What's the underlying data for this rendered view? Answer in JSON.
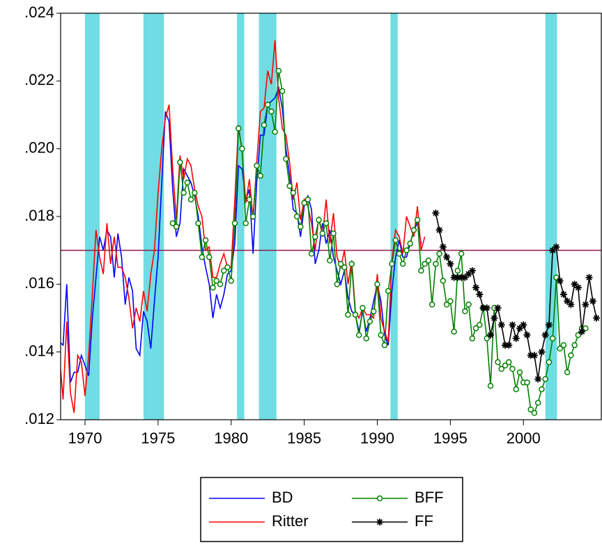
{
  "chart_data": {
    "type": "line",
    "xlim": [
      1968.33,
      2005.33
    ],
    "ylim": [
      0.012,
      0.024
    ],
    "xticks": [
      1970,
      1975,
      1980,
      1985,
      1990,
      1995,
      2000
    ],
    "yticks": [
      {
        "value": 0.012,
        "label": ".012"
      },
      {
        "value": 0.014,
        "label": ".014"
      },
      {
        "value": 0.016,
        "label": ".016"
      },
      {
        "value": 0.018,
        "label": ".018"
      },
      {
        "value": 0.02,
        "label": ".020"
      },
      {
        "value": 0.022,
        "label": ".022"
      },
      {
        "value": 0.024,
        "label": ".024"
      }
    ],
    "shaded_periods": [
      [
        1970.0,
        1971.0
      ],
      [
        1974.0,
        1975.4
      ],
      [
        1980.4,
        1980.9
      ],
      [
        1981.9,
        1983.1
      ],
      [
        1990.9,
        1991.4
      ],
      [
        2001.5,
        2002.3
      ]
    ],
    "shade_color": "#6fdde3",
    "hline": 0.017,
    "hline_color": "#8b1a4a",
    "series": [
      {
        "name": "BD",
        "color": "#0000ff",
        "marker": "none",
        "x": [
          1968.25,
          1968.5,
          1968.75,
          1969,
          1969.25,
          1969.5,
          1969.75,
          1970,
          1970.25,
          1970.5,
          1970.75,
          1971,
          1971.25,
          1971.5,
          1971.75,
          1972,
          1972.25,
          1972.5,
          1972.75,
          1973,
          1973.25,
          1973.5,
          1973.75,
          1974,
          1974.25,
          1974.5,
          1974.75,
          1975,
          1975.25,
          1975.5,
          1975.75,
          1976,
          1976.25,
          1976.5,
          1976.75,
          1977,
          1977.25,
          1977.5,
          1977.75,
          1978,
          1978.25,
          1978.5,
          1978.75,
          1979,
          1979.25,
          1979.5,
          1979.75,
          1980,
          1980.25,
          1980.5,
          1980.75,
          1981,
          1981.25,
          1981.5,
          1981.75,
          1982,
          1982.25,
          1982.5,
          1982.75,
          1983,
          1983.25,
          1983.5,
          1983.75,
          1984,
          1984.25,
          1984.5,
          1984.75,
          1985,
          1985.25,
          1985.5,
          1985.75,
          1986,
          1986.25,
          1986.5,
          1986.75,
          1987,
          1987.25,
          1987.5,
          1987.75,
          1988,
          1988.25,
          1988.5,
          1988.75,
          1989,
          1989.25,
          1989.5,
          1989.75,
          1990,
          1990.25,
          1990.5,
          1990.75,
          1991,
          1991.25,
          1991.5,
          1991.75,
          1992,
          1992.25,
          1992.5,
          1992.75,
          1993
        ],
        "values": [
          0.0143,
          0.0142,
          0.016,
          0.0131,
          0.0134,
          0.0134,
          0.0139,
          0.0136,
          0.0133,
          0.015,
          0.0162,
          0.0174,
          0.017,
          0.0176,
          0.0174,
          0.0162,
          0.0175,
          0.0168,
          0.0154,
          0.0162,
          0.0158,
          0.0141,
          0.0139,
          0.0152,
          0.0149,
          0.0141,
          0.0155,
          0.0168,
          0.019,
          0.0211,
          0.0208,
          0.0188,
          0.0174,
          0.0178,
          0.0194,
          0.0192,
          0.019,
          0.0186,
          0.018,
          0.0171,
          0.0165,
          0.016,
          0.015,
          0.0157,
          0.0153,
          0.0157,
          0.0163,
          0.0164,
          0.0172,
          0.0195,
          0.0194,
          0.0185,
          0.0188,
          0.0169,
          0.019,
          0.0204,
          0.0204,
          0.0213,
          0.0214,
          0.0215,
          0.0218,
          0.0212,
          0.02,
          0.0192,
          0.0182,
          0.0181,
          0.0174,
          0.0183,
          0.0186,
          0.0182,
          0.0166,
          0.017,
          0.0178,
          0.0172,
          0.0176,
          0.0168,
          0.0164,
          0.016,
          0.0164,
          0.0156,
          0.0152,
          0.0151,
          0.0146,
          0.0152,
          0.0146,
          0.015,
          0.0155,
          0.016,
          0.0155,
          0.0145,
          0.0142,
          0.0158,
          0.0168,
          0.0173,
          0.0168,
          0.0168,
          0.0172,
          0.0176,
          0.0178,
          0.0172
        ]
      },
      {
        "name": "Ritter",
        "color": "#ff0000",
        "marker": "none",
        "x": [
          1968.25,
          1968.5,
          1968.75,
          1969,
          1969.25,
          1969.5,
          1969.75,
          1970,
          1970.25,
          1970.5,
          1970.75,
          1971,
          1971.25,
          1971.5,
          1971.75,
          1972,
          1972.25,
          1972.5,
          1972.75,
          1973,
          1973.25,
          1973.5,
          1973.75,
          1974,
          1974.25,
          1974.5,
          1974.75,
          1975,
          1975.25,
          1975.5,
          1975.75,
          1976,
          1976.25,
          1976.5,
          1976.75,
          1977,
          1977.25,
          1977.5,
          1977.75,
          1978,
          1978.25,
          1978.5,
          1978.75,
          1979,
          1979.25,
          1979.5,
          1979.75,
          1980,
          1980.25,
          1980.5,
          1980.75,
          1981,
          1981.25,
          1981.5,
          1981.75,
          1982,
          1982.25,
          1982.5,
          1982.75,
          1983,
          1983.25,
          1983.5,
          1983.75,
          1984,
          1984.25,
          1984.5,
          1984.75,
          1985,
          1985.25,
          1985.5,
          1985.75,
          1986,
          1986.25,
          1986.5,
          1986.75,
          1987,
          1987.25,
          1987.5,
          1987.75,
          1988,
          1988.25,
          1988.5,
          1988.75,
          1989,
          1989.25,
          1989.5,
          1989.75,
          1990,
          1990.25,
          1990.5,
          1990.75,
          1991,
          1991.25,
          1991.5,
          1991.75,
          1992,
          1992.25,
          1992.5,
          1992.75,
          1993,
          1993.25
        ],
        "values": [
          0.0139,
          0.0126,
          0.0149,
          0.0128,
          0.0122,
          0.0139,
          0.0137,
          0.0127,
          0.0139,
          0.0157,
          0.0176,
          0.0168,
          0.0163,
          0.0178,
          0.0166,
          0.0174,
          0.0165,
          0.0165,
          0.0162,
          0.0156,
          0.0147,
          0.0153,
          0.0149,
          0.0158,
          0.0152,
          0.0163,
          0.017,
          0.0187,
          0.02,
          0.0209,
          0.0213,
          0.0194,
          0.0179,
          0.0198,
          0.0191,
          0.0197,
          0.0195,
          0.0188,
          0.0183,
          0.018,
          0.017,
          0.0171,
          0.0162,
          0.0162,
          0.0166,
          0.0169,
          0.0165,
          0.0165,
          0.0185,
          0.0207,
          0.0199,
          0.0184,
          0.0191,
          0.0179,
          0.0196,
          0.0211,
          0.0212,
          0.0223,
          0.0219,
          0.0232,
          0.0215,
          0.0206,
          0.0204,
          0.0196,
          0.0185,
          0.019,
          0.0179,
          0.0185,
          0.0183,
          0.0178,
          0.017,
          0.018,
          0.0174,
          0.0185,
          0.0172,
          0.0181,
          0.0168,
          0.0165,
          0.017,
          0.016,
          0.0167,
          0.0152,
          0.015,
          0.0153,
          0.0151,
          0.0151,
          0.015,
          0.0163,
          0.015,
          0.0146,
          0.0143,
          0.0167,
          0.0176,
          0.0174,
          0.0169,
          0.018,
          0.0177,
          0.0174,
          0.0183,
          0.017,
          0.0174
        ]
      },
      {
        "name": "BFF",
        "color": "#008000",
        "marker": "circle",
        "x": [
          1976,
          1976.25,
          1976.5,
          1976.75,
          1977,
          1977.25,
          1977.5,
          1977.75,
          1978,
          1978.25,
          1978.5,
          1978.75,
          1979,
          1979.25,
          1979.5,
          1979.75,
          1980,
          1980.25,
          1980.5,
          1980.75,
          1981,
          1981.25,
          1981.5,
          1981.75,
          1982,
          1982.25,
          1982.5,
          1982.75,
          1983,
          1983.25,
          1983.5,
          1983.75,
          1984,
          1984.25,
          1984.5,
          1984.75,
          1985,
          1985.25,
          1985.5,
          1985.75,
          1986,
          1986.25,
          1986.5,
          1986.75,
          1987,
          1987.25,
          1987.5,
          1987.75,
          1988,
          1988.25,
          1988.5,
          1988.75,
          1989,
          1989.25,
          1989.5,
          1989.75,
          1990,
          1990.25,
          1990.5,
          1990.75,
          1991,
          1991.25,
          1991.5,
          1991.75,
          1992,
          1992.25,
          1992.5,
          1992.75,
          1993,
          1993.25,
          1993.5,
          1993.75,
          1994,
          1994.25,
          1994.5,
          1994.75,
          1995,
          1995.25,
          1995.5,
          1995.75,
          1996,
          1996.25,
          1996.5,
          1996.75,
          1997,
          1997.25,
          1997.5,
          1997.75,
          1998,
          1998.25,
          1998.5,
          1998.75,
          1999,
          1999.25,
          1999.5,
          1999.75,
          2000,
          2000.25,
          2000.5,
          2000.75,
          2001,
          2001.25,
          2001.5,
          2001.75,
          2002,
          2002.25,
          2002.5,
          2002.75,
          2003,
          2003.25,
          2003.5,
          2003.75,
          2004,
          2004.25
        ],
        "values": [
          0.0178,
          0.0177,
          0.0196,
          0.0187,
          0.019,
          0.0185,
          0.0187,
          0.0178,
          0.0168,
          0.0173,
          0.0168,
          0.0159,
          0.0161,
          0.016,
          0.0164,
          0.0165,
          0.0161,
          0.0178,
          0.0206,
          0.02,
          0.0178,
          0.0185,
          0.018,
          0.0195,
          0.0192,
          0.0207,
          0.0213,
          0.0211,
          0.0205,
          0.0223,
          0.0217,
          0.0197,
          0.0189,
          0.0187,
          0.018,
          0.0177,
          0.0184,
          0.0185,
          0.0169,
          0.0174,
          0.0179,
          0.0175,
          0.0178,
          0.0167,
          0.0175,
          0.016,
          0.0166,
          0.0165,
          0.0151,
          0.0166,
          0.0151,
          0.0145,
          0.0153,
          0.0144,
          0.0149,
          0.0152,
          0.016,
          0.0145,
          0.0142,
          0.0158,
          0.0166,
          0.0173,
          0.0169,
          0.0166,
          0.017,
          0.0172,
          0.0176,
          0.0179,
          0.0164,
          0.0166,
          0.0167,
          0.0154,
          0.0166,
          0.0169,
          0.0161,
          0.0154,
          0.0155,
          0.0146,
          0.0164,
          0.0169,
          0.0152,
          0.0154,
          0.0144,
          0.0147,
          0.0148,
          0.0153,
          0.0144,
          0.013,
          0.0153,
          0.0137,
          0.0135,
          0.0136,
          0.0137,
          0.0135,
          0.0129,
          0.0134,
          0.0131,
          0.0131,
          0.0123,
          0.0122,
          0.0125,
          0.0129,
          0.0132,
          0.0137,
          0.0144,
          0.0162,
          0.0141,
          0.0142,
          0.0134,
          0.0139,
          0.0142,
          0.0145,
          0.0147,
          0.0147
        ]
      },
      {
        "name": "FF",
        "color": "#000000",
        "marker": "star",
        "x": [
          1994,
          1994.25,
          1994.5,
          1994.75,
          1995,
          1995.25,
          1995.5,
          1995.75,
          1996,
          1996.25,
          1996.5,
          1996.75,
          1997,
          1997.25,
          1997.5,
          1997.75,
          1998,
          1998.25,
          1998.5,
          1998.75,
          1999,
          1999.25,
          1999.5,
          1999.75,
          2000,
          2000.25,
          2000.5,
          2000.75,
          2001,
          2001.25,
          2001.5,
          2001.75,
          2002,
          2002.25,
          2002.5,
          2002.75,
          2003,
          2003.25,
          2003.5,
          2003.75,
          2004,
          2004.25,
          2004.5,
          2004.75,
          2005
        ],
        "values": [
          0.0181,
          0.0176,
          0.0171,
          0.0168,
          0.0166,
          0.0162,
          0.0162,
          0.0162,
          0.0162,
          0.0163,
          0.0164,
          0.0159,
          0.0157,
          0.0153,
          0.0153,
          0.0145,
          0.015,
          0.0153,
          0.0148,
          0.0142,
          0.0142,
          0.0148,
          0.0144,
          0.0147,
          0.0148,
          0.0145,
          0.0139,
          0.0139,
          0.0132,
          0.014,
          0.0145,
          0.0148,
          0.017,
          0.0171,
          0.0161,
          0.0157,
          0.0155,
          0.0154,
          0.016,
          0.0159,
          0.0146,
          0.0154,
          0.0162,
          0.0155,
          0.015
        ]
      }
    ]
  }
}
